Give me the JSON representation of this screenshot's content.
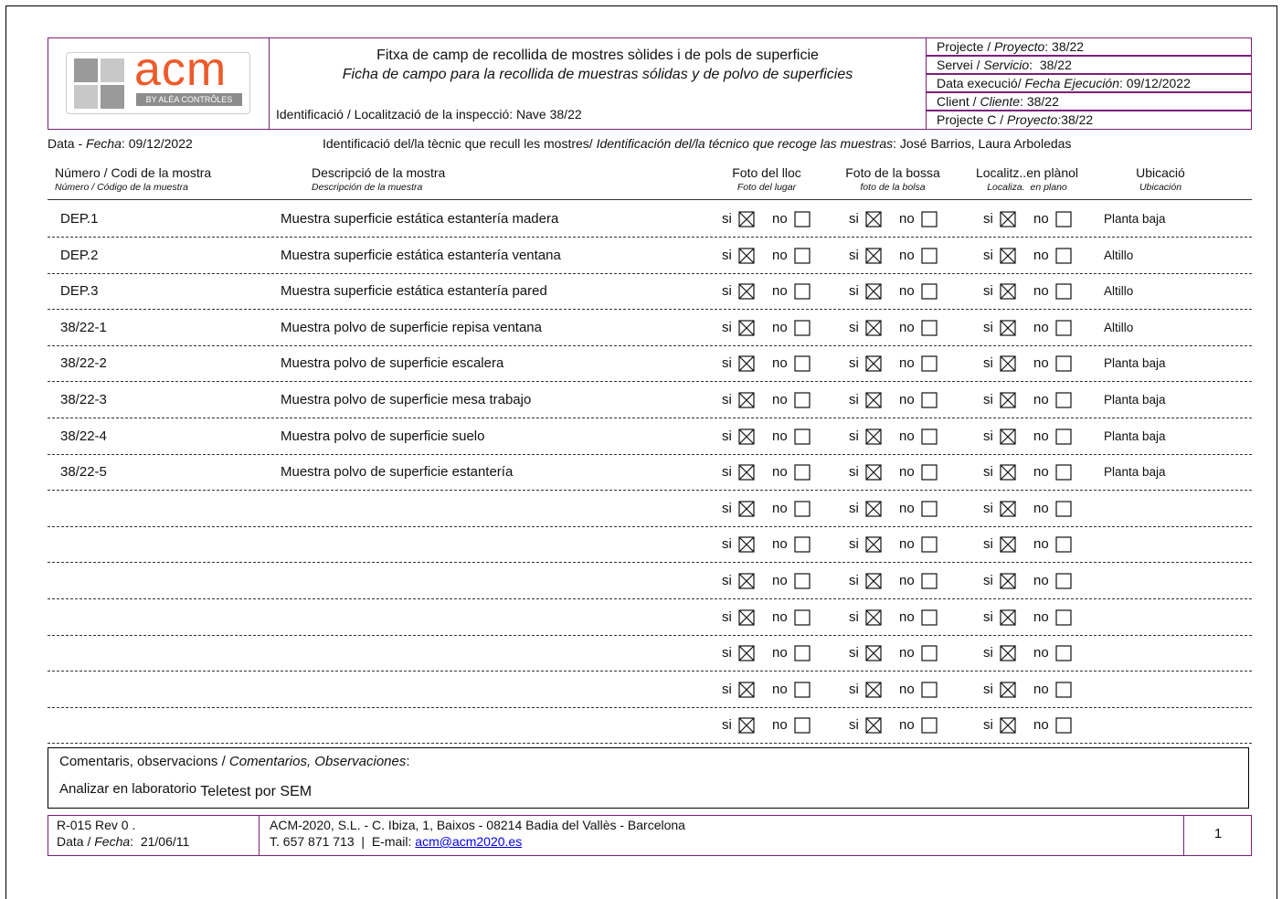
{
  "header": {
    "logo": {
      "name": "acm",
      "tagline": "BY ALÉA CONTRÔLES"
    },
    "title_ca": "Fitxa de camp de recollida de mostres sòlides i de pols de superficie",
    "title_es": "Ficha de campo para la recollida de muestras sólidas y de polvo de superficies",
    "identification": "Identificació / Localització de la inspecció: Nave 38/22",
    "info": [
      {
        "ca": "Projecte / ",
        "es": "Proyecto",
        "value": ": 38/22"
      },
      {
        "ca": "Servei / ",
        "es": "Servicio",
        "value": ":  38/22"
      },
      {
        "ca": "Data execució/ ",
        "es": "Fecha Ejecución",
        "value": ": 09/12/2022"
      },
      {
        "ca": "Client / ",
        "es": "Cliente",
        "value": ": 38/22"
      },
      {
        "ca": "Projecte C / ",
        "es": "Proyecto:",
        "value": "38/22"
      }
    ]
  },
  "date_line": {
    "ca": "Data - ",
    "es": "Fecha",
    "value": ": 09/12/2022"
  },
  "technician_line": {
    "ca": "Identificació del/la tècnic que recull les mostres/ ",
    "es": "Identificación del/la técnico que recoge las muestras",
    "value": ": José Barrios, Laura Arboledas"
  },
  "columns": [
    {
      "main": "Número / Codi de la mostra",
      "sub": "Número / Código de la muestra"
    },
    {
      "main": "Descripció de la mostra",
      "sub": "Descripción de la muestra"
    },
    {
      "main": "Foto del lloc",
      "sub": "Foto del lugar"
    },
    {
      "main": "Foto de la bossa",
      "sub": "foto de la bolsa"
    },
    {
      "main": "Localitz..en plànol",
      "sub": "Localiza.  en plano"
    },
    {
      "main": "Ubicació",
      "sub": "Ubicación"
    }
  ],
  "check_labels": {
    "yes": "si",
    "no": "no"
  },
  "rows": [
    {
      "code": "DEP.1",
      "description": "Muestra superficie estática estantería madera",
      "location": "Planta baja",
      "checks": [
        true,
        true,
        true
      ]
    },
    {
      "code": "DEP.2",
      "description": "Muestra superficie estática estantería ventana",
      "location": "Altillo",
      "checks": [
        true,
        true,
        true
      ]
    },
    {
      "code": "DEP.3",
      "description": "Muestra superficie estática estantería pared",
      "location": "Altillo",
      "checks": [
        true,
        true,
        true
      ]
    },
    {
      "code": "38/22-1",
      "description": "Muestra polvo de superficie repisa ventana",
      "location": "Altillo",
      "checks": [
        true,
        true,
        true
      ]
    },
    {
      "code": "38/22-2",
      "description": "Muestra polvo de superficie escalera",
      "location": "Planta baja",
      "checks": [
        true,
        true,
        true
      ]
    },
    {
      "code": "38/22-3",
      "description": "Muestra polvo de superficie mesa trabajo",
      "location": "Planta baja",
      "checks": [
        true,
        true,
        true
      ]
    },
    {
      "code": "38/22-4",
      "description": "Muestra polvo de superficie suelo",
      "location": "Planta baja",
      "checks": [
        true,
        true,
        true
      ]
    },
    {
      "code": "38/22-5",
      "description": "Muestra polvo de superficie estantería",
      "location": "Planta baja",
      "checks": [
        true,
        true,
        true
      ]
    },
    {
      "checks": [
        true,
        true,
        true
      ]
    },
    {
      "checks": [
        true,
        true,
        true
      ]
    },
    {
      "checks": [
        true,
        true,
        true
      ]
    },
    {
      "checks": [
        true,
        true,
        true
      ]
    },
    {
      "checks": [
        true,
        true,
        true
      ]
    },
    {
      "checks": [
        true,
        true,
        true
      ]
    },
    {
      "checks": [
        true,
        true,
        true
      ]
    }
  ],
  "comments": {
    "label_ca": "Comentaris, observacions / ",
    "label_es": "Comentarios, Observaciones",
    "label_end": ":",
    "text_a": "Analizar en laboratorio",
    "text_b": "Teletest por SEM"
  },
  "footer": {
    "ref": "R-015 Rev 0 .",
    "date": {
      "ca": "Data / ",
      "es": "Fecha",
      "value": ":  21/06/11"
    },
    "address": "ACM-2020, S.L. - C. Ibiza, 1, Baixos - 08214 Badia del Vallès - Barcelona",
    "contact": "T. 657 871 713  |  E-mail: ",
    "email": "acm@acm2020.es",
    "page": "1"
  }
}
